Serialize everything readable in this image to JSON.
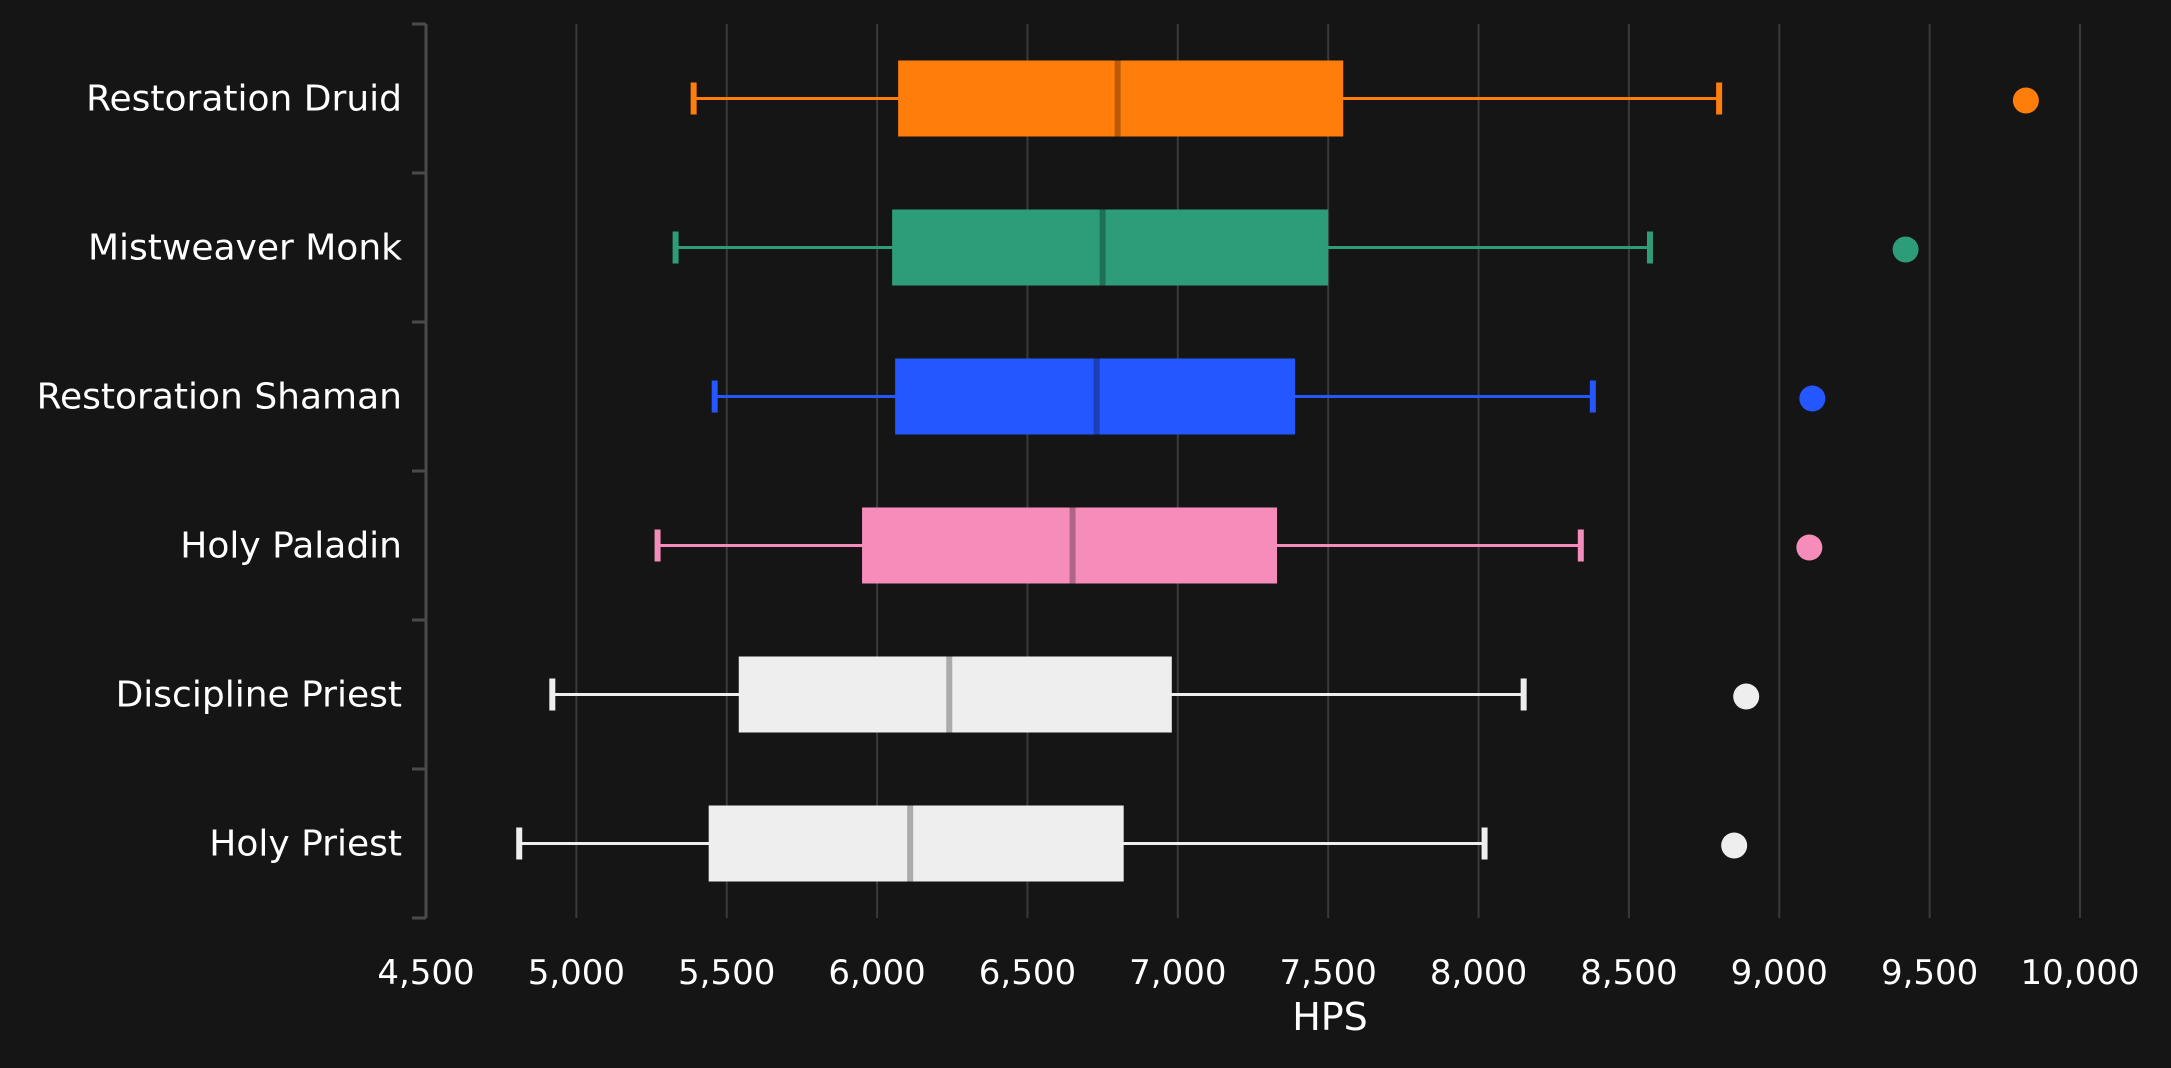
{
  "chart_data": {
    "type": "box",
    "orientation": "horizontal",
    "title": "",
    "xlabel": "HPS",
    "ylabel": "",
    "xlim": [
      4500,
      10000
    ],
    "x_ticks": [
      4500,
      5000,
      5500,
      6000,
      6500,
      7000,
      7500,
      8000,
      8500,
      9000,
      9500,
      10000
    ],
    "x_tick_labels": [
      "4,500",
      "5,000",
      "5,500",
      "6,000",
      "6,500",
      "7,000",
      "7,500",
      "8,000",
      "8,500",
      "9,000",
      "9,500",
      "10,000"
    ],
    "grid": "vertical",
    "legend": "none",
    "categories": [
      "Restoration Druid",
      "Mistweaver Monk",
      "Restoration Shaman",
      "Holy Paladin",
      "Discipline Priest",
      "Holy Priest"
    ],
    "boxes": [
      {
        "category": "Restoration Druid",
        "color": "#ff7d0a",
        "whisker_low": 5390,
        "q1": 6070,
        "median": 6800,
        "q3": 7550,
        "whisker_high": 8800,
        "outliers": [
          9820
        ]
      },
      {
        "category": "Mistweaver Monk",
        "color": "#2d9c78",
        "whisker_low": 5330,
        "q1": 6050,
        "median": 6750,
        "q3": 7500,
        "whisker_high": 8570,
        "outliers": [
          9420
        ]
      },
      {
        "category": "Restoration Shaman",
        "color": "#2457ff",
        "whisker_low": 5460,
        "q1": 6060,
        "median": 6730,
        "q3": 7390,
        "whisker_high": 8380,
        "outliers": [
          9110
        ]
      },
      {
        "category": "Holy Paladin",
        "color": "#f58cba",
        "whisker_low": 5270,
        "q1": 5950,
        "median": 6650,
        "q3": 7330,
        "whisker_high": 8340,
        "outliers": [
          9100
        ]
      },
      {
        "category": "Discipline Priest",
        "color": "#eeeeee",
        "whisker_low": 4920,
        "q1": 5540,
        "median": 6240,
        "q3": 6980,
        "whisker_high": 8150,
        "outliers": [
          8890
        ]
      },
      {
        "category": "Holy Priest",
        "color": "#eeeeee",
        "whisker_low": 4810,
        "q1": 5440,
        "median": 6110,
        "q3": 6820,
        "whisker_high": 8020,
        "outliers": [
          8850
        ]
      }
    ]
  }
}
